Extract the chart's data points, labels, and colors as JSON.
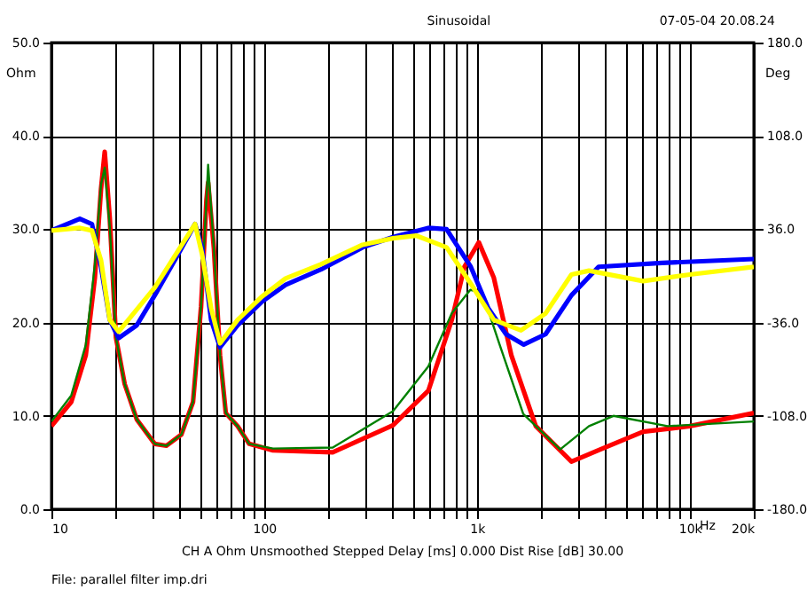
{
  "chart_data": {
    "type": "line",
    "title": "Sinusoidal",
    "xlabel": "Hz",
    "ylabel": "Ohm",
    "y2label": "Deg",
    "annotations": [
      "07-05-04 20.08.24",
      "CH A  Ohm  Unsmoothed  Stepped   Delay [ms] 0.000   Dist Rise [dB] 30.00",
      "File: parallel filter imp.dri"
    ],
    "log": "x",
    "grid": true,
    "line_style": "solid",
    "marker": "none",
    "xlim": [
      10,
      20000
    ],
    "ylim": [
      0,
      50
    ],
    "y2lim": [
      -180,
      180
    ],
    "xticks": [
      10,
      {
        "value": 20,
        "label": null
      },
      {
        "value": 30,
        "label": null
      },
      {
        "value": 40,
        "label": null
      },
      {
        "value": 50,
        "label": null
      },
      {
        "value": 60,
        "label": null
      },
      {
        "value": 70,
        "label": null
      },
      {
        "value": 80,
        "label": null
      },
      {
        "value": 90,
        "label": null
      },
      100,
      {
        "value": 200,
        "label": null
      },
      {
        "value": 300,
        "label": null
      },
      {
        "value": 400,
        "label": null
      },
      {
        "value": 500,
        "label": null
      },
      {
        "value": 600,
        "label": null
      },
      {
        "value": 700,
        "label": null
      },
      {
        "value": 800,
        "label": null
      },
      {
        "value": 900,
        "label": null
      },
      {
        "value": 1000,
        "label": "1k"
      },
      {
        "value": 2000,
        "label": null
      },
      {
        "value": 3000,
        "label": null
      },
      {
        "value": 4000,
        "label": null
      },
      {
        "value": 5000,
        "label": null
      },
      {
        "value": 6000,
        "label": null
      },
      {
        "value": 7000,
        "label": null
      },
      {
        "value": 8000,
        "label": null
      },
      {
        "value": 9000,
        "label": null
      },
      {
        "value": 10000,
        "label": "10k"
      },
      {
        "value": 20000,
        "label": "20k"
      }
    ],
    "yticks": [
      {
        "value": 0,
        "label": "0.0"
      },
      {
        "value": 10,
        "label": "10.0"
      },
      {
        "value": 20,
        "label": "20.0"
      },
      {
        "value": 30,
        "label": "30.0"
      },
      {
        "value": 40,
        "label": "40.0"
      },
      {
        "value": 50,
        "label": "50.0"
      }
    ],
    "y2ticks": [
      {
        "value": -180,
        "label": "-180.0"
      },
      {
        "value": -108,
        "label": "-108.0"
      },
      {
        "value": -36,
        "label": "-36.0"
      },
      {
        "value": 36,
        "label": "36.0"
      },
      {
        "value": 108,
        "label": "108.0"
      },
      {
        "value": 180,
        "label": "180.0"
      }
    ],
    "series": [
      {
        "color": "#0000ff",
        "axis": "y2",
        "x": [
          10,
          13.6,
          15.5,
          17.1,
          18.8,
          20.7,
          25.2,
          30.6,
          39.5,
          47.3,
          51,
          56.3,
          62,
          75,
          97.5,
          126,
          185,
          290,
          403,
          591,
          720,
          935,
          1130,
          1370,
          1660,
          2100,
          2780,
          3730,
          7400,
          20000
        ],
        "values": [
          35,
          44,
          40,
          7,
          -34,
          -48,
          -38,
          -15,
          17,
          40,
          22,
          -34,
          -55,
          -38,
          -20,
          -7,
          5,
          22,
          30,
          37,
          36,
          7,
          -25,
          -45,
          -53,
          -45,
          -15,
          7,
          10,
          13
        ]
      },
      {
        "color": "#ffff00",
        "axis": "y2",
        "x": [
          10,
          13.6,
          15.5,
          17.1,
          18.8,
          20.7,
          30.6,
          47.3,
          51,
          56.3,
          62,
          75,
          97.5,
          126,
          185,
          290,
          403,
          520,
          720,
          935,
          1200,
          1610,
          2100,
          2780,
          3360,
          6040,
          10000,
          20000
        ],
        "values": [
          35,
          37,
          35,
          12,
          -34,
          -43,
          -9,
          40,
          17,
          -25,
          -52,
          -34,
          -16,
          -2,
          9,
          24,
          29,
          31,
          22,
          -6,
          -34,
          -42,
          -29,
          1,
          4,
          -4,
          1,
          7
        ]
      },
      {
        "color": "#ff0000",
        "x": [
          10,
          12.4,
          14.5,
          16,
          17.1,
          17.8,
          18.8,
          20.1,
          22.1,
          25.2,
          30.6,
          34.7,
          40.8,
          46.3,
          50.5,
          53.5,
          54.5,
          58,
          62,
          66,
          75,
          85,
          110,
          210,
          403,
          591,
          762,
          874,
          1020,
          1200,
          1450,
          1890,
          2780,
          3800,
          6040,
          10000,
          20000
        ],
        "values": [
          8.9,
          11.5,
          16.5,
          24.8,
          34.3,
          38.3,
          31.2,
          18.4,
          13.4,
          9.6,
          7.0,
          6.8,
          8.0,
          11.5,
          21.7,
          33.1,
          35,
          28,
          16.5,
          10.3,
          8.9,
          7.0,
          6.3,
          6.1,
          9,
          12.7,
          20.3,
          26,
          28.6,
          24.8,
          16.5,
          8.9,
          5.1,
          6.4,
          8.3,
          8.9,
          10.3
        ]
      },
      {
        "color": "#008000",
        "x": [
          10,
          12.4,
          14.5,
          16,
          17.1,
          17.8,
          18.8,
          20.1,
          22.1,
          25.2,
          30.6,
          34.7,
          40.8,
          46.3,
          50.5,
          53.5,
          54.5,
          58,
          62,
          66,
          75,
          85,
          110,
          210,
          403,
          591,
          762,
          930,
          1060,
          1270,
          1650,
          2460,
          3360,
          4380,
          7870,
          20000
        ],
        "values": [
          9.4,
          12.2,
          17.6,
          26.2,
          34.8,
          36.6,
          30.2,
          18.4,
          13.4,
          9.6,
          7.0,
          6.8,
          8.0,
          11.5,
          21.7,
          33.1,
          36.9,
          28,
          16.5,
          10.3,
          8.9,
          7.0,
          6.5,
          6.6,
          10.5,
          15.3,
          21,
          23.5,
          23.2,
          17.8,
          10.2,
          6.4,
          8.9,
          10,
          8.9,
          9.4
        ]
      }
    ]
  }
}
